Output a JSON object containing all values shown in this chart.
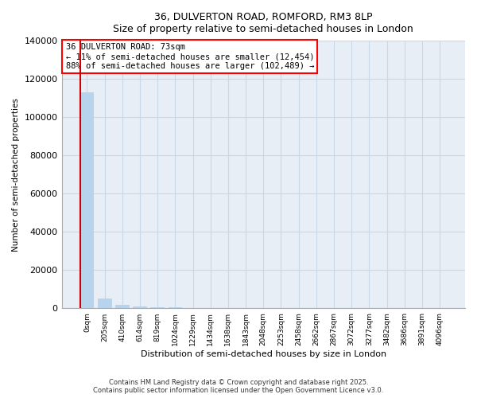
{
  "title": "36, DULVERTON ROAD, ROMFORD, RM3 8LP",
  "subtitle": "Size of property relative to semi-detached houses in London",
  "xlabel": "Distribution of semi-detached houses by size in London",
  "ylabel": "Number of semi-detached properties",
  "annotation_title": "36 DULVERTON ROAD: 73sqm",
  "annotation_line2": "← 11% of semi-detached houses are smaller (12,454)",
  "annotation_line3": "88% of semi-detached houses are larger (102,489) →",
  "footer_line1": "Contains HM Land Registry data © Crown copyright and database right 2025.",
  "footer_line2": "Contains public sector information licensed under the Open Government Licence v3.0.",
  "bar_color": "#b8d4ed",
  "highlight_color": "#cc0000",
  "highlight_index": 0,
  "categories": [
    "0sqm",
    "205sqm",
    "410sqm",
    "614sqm",
    "819sqm",
    "1024sqm",
    "1229sqm",
    "1434sqm",
    "1638sqm",
    "1843sqm",
    "2048sqm",
    "2253sqm",
    "2458sqm",
    "2662sqm",
    "2867sqm",
    "3072sqm",
    "3277sqm",
    "3482sqm",
    "3686sqm",
    "3891sqm",
    "4096sqm"
  ],
  "values": [
    113000,
    5200,
    1800,
    900,
    600,
    450,
    350,
    270,
    220,
    190,
    160,
    130,
    110,
    90,
    80,
    70,
    60,
    55,
    50,
    45,
    40
  ],
  "ylim": [
    0,
    140000
  ],
  "yticks": [
    0,
    20000,
    40000,
    60000,
    80000,
    100000,
    120000,
    140000
  ],
  "background_color": "#ffffff",
  "plot_bg_color": "#e8eef5"
}
